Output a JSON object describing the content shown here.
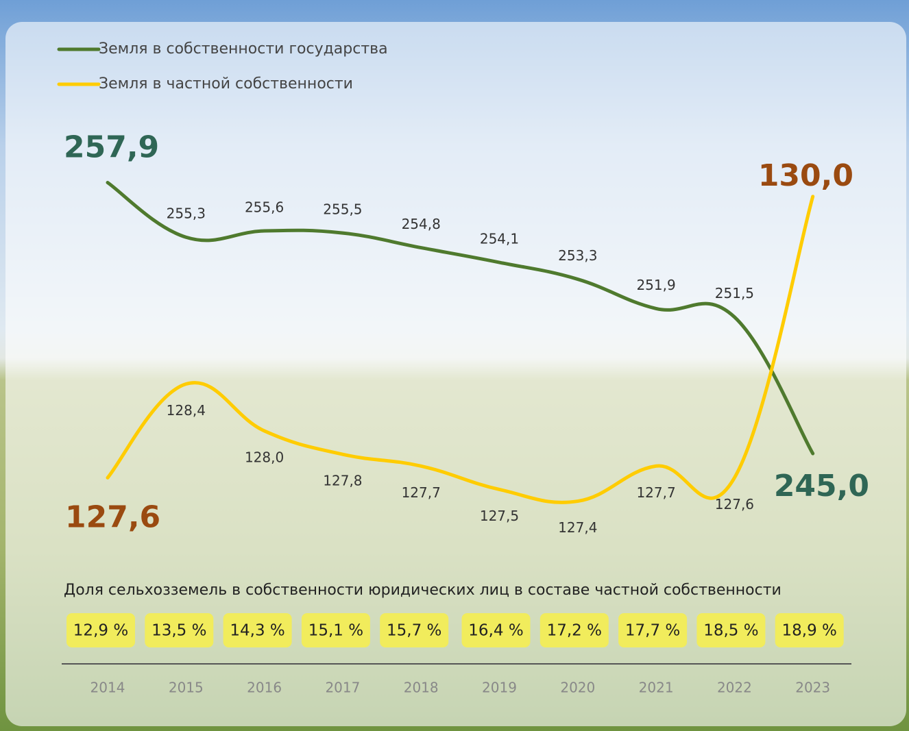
{
  "chart_data": {
    "type": "line",
    "categories": [
      "2014",
      "2015",
      "2016",
      "2017",
      "2018",
      "2019",
      "2020",
      "2021",
      "2022",
      "2023"
    ],
    "ylim": [
      240.5,
      261.7
    ],
    "y2lim": [
      127.0,
      130.8
    ],
    "series": [
      {
        "name": "Земля в собственности государства",
        "color": "#4f7a2e",
        "label_color": "#2f6655",
        "values": [
          257.9,
          255.3,
          255.6,
          255.5,
          254.8,
          254.1,
          253.3,
          251.9,
          251.5,
          245.0
        ],
        "value_labels": [
          "257,9",
          "255,3",
          "255,6",
          "255,5",
          "254,8",
          "254,1",
          "253,3",
          "251,9",
          "251,5",
          "245,0"
        ]
      },
      {
        "name": "Земля в частной собственности",
        "color": "#ffcc00",
        "label_color": "#9a4a10",
        "axis": "y2",
        "values": [
          127.6,
          128.4,
          128.0,
          127.8,
          127.7,
          127.5,
          127.4,
          127.7,
          127.6,
          130.0
        ],
        "value_labels": [
          "127,6",
          "128,4",
          "128,0",
          "127,8",
          "127,7",
          "127,5",
          "127,4",
          "127,7",
          "127,6",
          "130,0"
        ]
      }
    ],
    "share_title": "Доля сельхозземель в собственности юридических лиц в составе частной собственности",
    "share_values": [
      12.9,
      13.5,
      14.3,
      15.1,
      15.7,
      16.4,
      17.2,
      17.7,
      18.5,
      18.9
    ],
    "share_value_labels": [
      "12,9 %",
      "13,5 %",
      "14,3 %",
      "15,1 %",
      "15,7 %",
      "16,4 %",
      "17,2 %",
      "17,7 %",
      "18,5 %",
      "18,9 %"
    ],
    "share_color": "#f1ec5c"
  }
}
